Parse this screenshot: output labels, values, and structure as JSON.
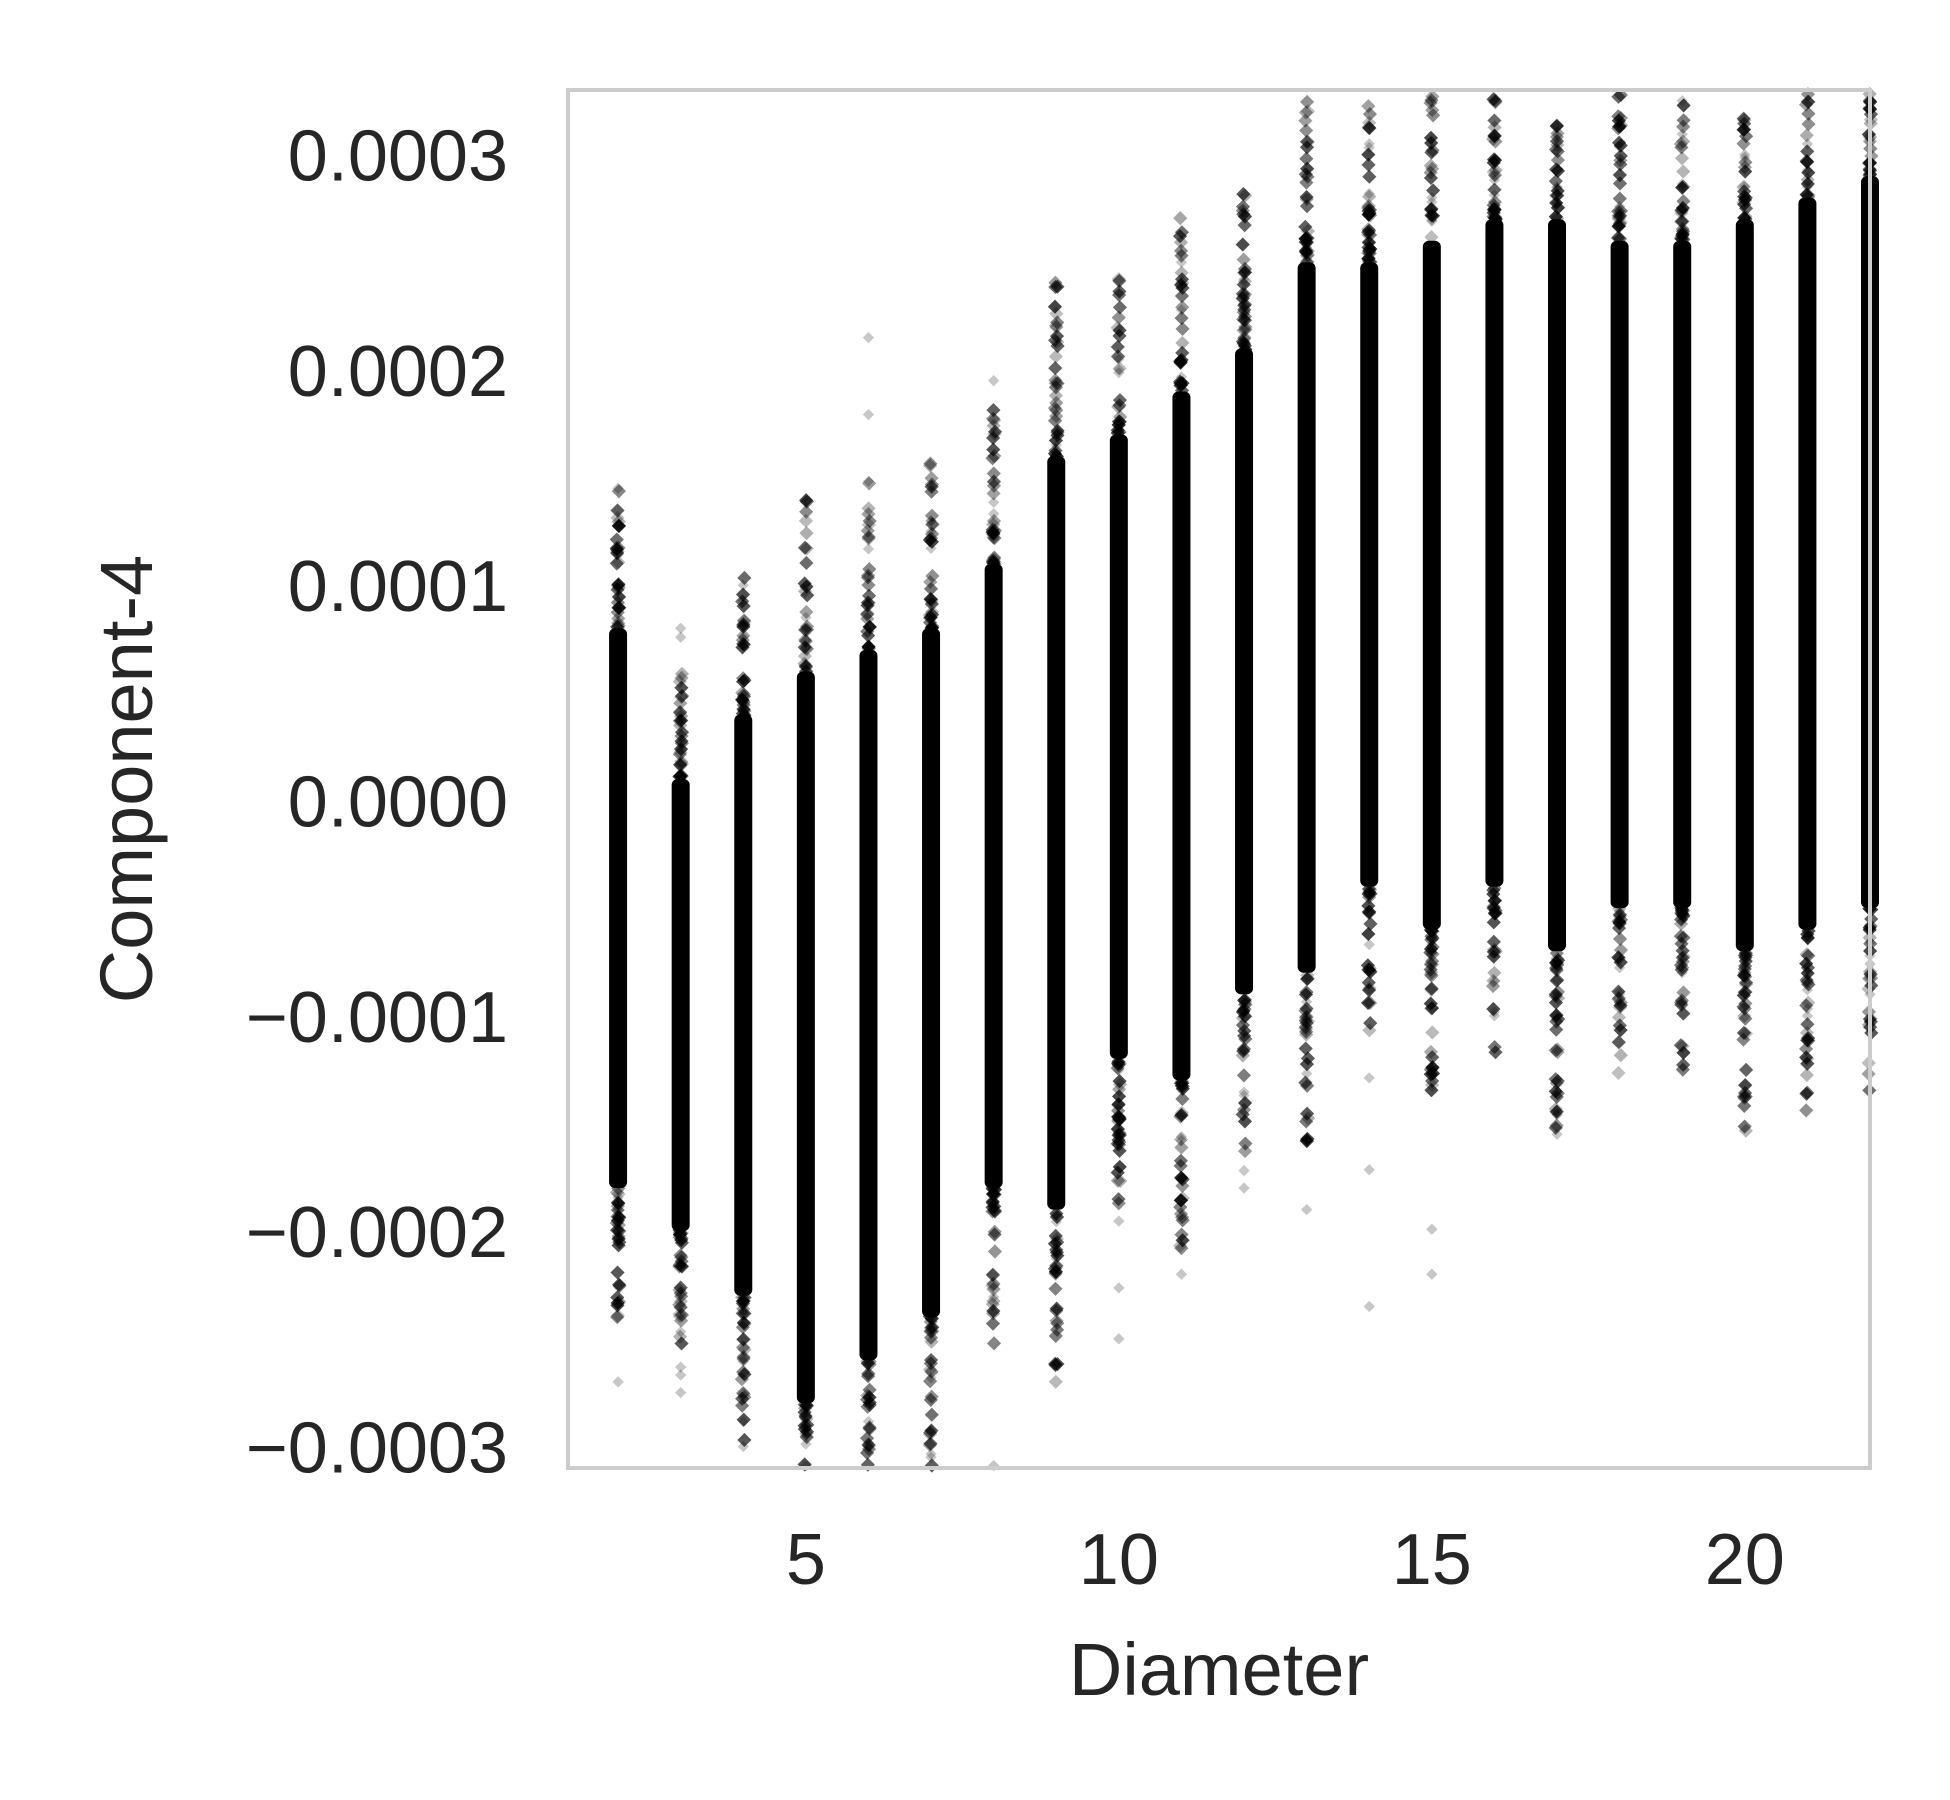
{
  "chart_data": {
    "type": "scatter",
    "title": "",
    "xlabel": "Diameter",
    "ylabel": "Component-4",
    "xlim": [
      1.2,
      22.0
    ],
    "ylim": [
      -0.00031,
      0.00033
    ],
    "x_ticks": [
      5,
      10,
      15,
      20
    ],
    "x_tick_labels": [
      "5",
      "10",
      "15",
      "20"
    ],
    "y_ticks": [
      -0.0003,
      -0.0002,
      -0.0001,
      0.0,
      0.0001,
      0.0002,
      0.0003
    ],
    "y_tick_labels": [
      "−0.0003",
      "−0.0002",
      "−0.0001",
      "0.0000",
      "0.0001",
      "0.0002",
      "0.0003"
    ],
    "grid": false,
    "marker_color": "#000000",
    "frame_color": "#cccccc",
    "series": [
      {
        "description_free": true,
        "columns": [
          {
            "x": 2,
            "dense_min": -0.00018,
            "dense_max": 8e-05,
            "min": -0.00027,
            "max": 0.000145
          },
          {
            "x": 3,
            "dense_min": -0.0002,
            "dense_max": 1e-05,
            "min": -0.000275,
            "max": 8e-05
          },
          {
            "x": 4,
            "dense_min": -0.00023,
            "dense_max": 4e-05,
            "min": -0.0003,
            "max": 0.0001
          },
          {
            "x": 5,
            "dense_min": -0.00028,
            "dense_max": 6e-05,
            "min": -0.00031,
            "max": 8.5e-05
          },
          {
            "x": 6,
            "dense_min": -0.00026,
            "dense_max": 7e-05,
            "min": -0.0003,
            "max": 0.000215
          },
          {
            "x": 7,
            "dense_min": -0.00024,
            "dense_max": 8e-05,
            "min": -0.000305,
            "max": 0.00013
          },
          {
            "x": 8,
            "dense_min": -0.00018,
            "dense_max": 0.00011,
            "min": -0.00031,
            "max": 0.000195
          },
          {
            "x": 9,
            "dense_min": -0.00019,
            "dense_max": 0.00016,
            "min": -0.00022,
            "max": 0.000165
          },
          {
            "x": 10,
            "dense_min": -0.00012,
            "dense_max": 0.00017,
            "min": -0.00025,
            "max": 0.000205
          },
          {
            "x": 11,
            "dense_min": -0.00013,
            "dense_max": 0.00019,
            "min": -0.00022,
            "max": 0.00025
          },
          {
            "x": 12,
            "dense_min": -9e-05,
            "dense_max": 0.00021,
            "min": -0.00018,
            "max": 0.000245
          },
          {
            "x": 13,
            "dense_min": -8e-05,
            "dense_max": 0.00025,
            "min": -0.00019,
            "max": 0.00026
          },
          {
            "x": 14,
            "dense_min": -4e-05,
            "dense_max": 0.00025,
            "min": -0.000235,
            "max": 0.000305
          },
          {
            "x": 15,
            "dense_min": -6e-05,
            "dense_max": 0.00026,
            "min": -0.00022,
            "max": 0.00028
          },
          {
            "x": 16,
            "dense_min": -4e-05,
            "dense_max": 0.00027,
            "min": -0.0001,
            "max": 0.00029
          },
          {
            "x": 17,
            "dense_min": -7e-05,
            "dense_max": 0.00027,
            "min": -0.000155,
            "max": 0.000285
          },
          {
            "x": 18,
            "dense_min": -5e-05,
            "dense_max": 0.00026,
            "min": -9e-05,
            "max": 0.000315
          },
          {
            "x": 19,
            "dense_min": -5e-05,
            "dense_max": 0.00026,
            "min": -8e-05,
            "max": 0.000325
          },
          {
            "x": 20,
            "dense_min": -7e-05,
            "dense_max": 0.00027,
            "min": -8e-05,
            "max": 0.0003
          },
          {
            "x": 21,
            "dense_min": -6e-05,
            "dense_max": 0.00028,
            "min": -0.0001,
            "max": 0.000305
          },
          {
            "x": 22,
            "dense_min": -5e-05,
            "dense_max": 0.00029,
            "min": -9e-05,
            "max": 0.00031
          }
        ]
      }
    ]
  }
}
